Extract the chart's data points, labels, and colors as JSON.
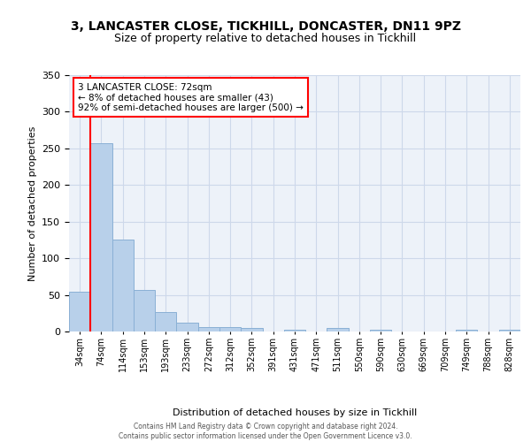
{
  "title_line1": "3, LANCASTER CLOSE, TICKHILL, DONCASTER, DN11 9PZ",
  "title_line2": "Size of property relative to detached houses in Tickhill",
  "xlabel": "Distribution of detached houses by size in Tickhill",
  "ylabel": "Number of detached properties",
  "bar_color": "#b8d0ea",
  "bar_edge_color": "#8ab0d5",
  "grid_color": "#cdd8ea",
  "bg_color": "#edf2f9",
  "bin_labels": [
    "34sqm",
    "74sqm",
    "114sqm",
    "153sqm",
    "193sqm",
    "233sqm",
    "272sqm",
    "312sqm",
    "352sqm",
    "391sqm",
    "431sqm",
    "471sqm",
    "511sqm",
    "550sqm",
    "590sqm",
    "630sqm",
    "669sqm",
    "709sqm",
    "749sqm",
    "788sqm",
    "828sqm"
  ],
  "bar_values": [
    54,
    257,
    126,
    57,
    26,
    12,
    6,
    6,
    5,
    0,
    2,
    0,
    5,
    0,
    3,
    0,
    0,
    0,
    3,
    0,
    3
  ],
  "ylim": [
    0,
    350
  ],
  "yticks": [
    0,
    50,
    100,
    150,
    200,
    250,
    300,
    350
  ],
  "annotation_line1": "3 LANCASTER CLOSE: 72sqm",
  "annotation_line2": "← 8% of detached houses are smaller (43)",
  "annotation_line3": "92% of semi-detached houses are larger (500) →",
  "footer_line1": "Contains HM Land Registry data © Crown copyright and database right 2024.",
  "footer_line2": "Contains public sector information licensed under the Open Government Licence v3.0."
}
